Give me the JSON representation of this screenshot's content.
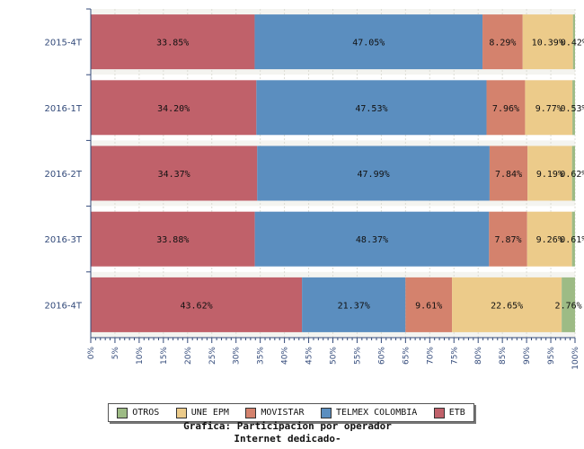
{
  "chart_data": {
    "type": "bar",
    "orientation": "horizontal",
    "stacked": true,
    "categories": [
      "2015-4T",
      "2016-1T",
      "2016-2T",
      "2016-3T",
      "2016-4T"
    ],
    "series": [
      {
        "name": "ETB",
        "color": "#c0616a",
        "values": [
          33.85,
          34.2,
          34.37,
          33.88,
          43.62
        ],
        "labels": [
          "33.85%",
          "34.20%",
          "34.37%",
          "33.88%",
          "43.62%"
        ]
      },
      {
        "name": "TELMEX COLOMBIA",
        "color": "#5b8ebf",
        "values": [
          47.05,
          47.53,
          47.99,
          48.37,
          21.37
        ],
        "labels": [
          "47.05%",
          "47.53%",
          "47.99%",
          "48.37%",
          "21.37%"
        ]
      },
      {
        "name": "MOVISTAR",
        "color": "#d4826d",
        "values": [
          8.29,
          7.96,
          7.84,
          7.87,
          9.61
        ],
        "labels": [
          "8.29%",
          "7.96%",
          "7.84%",
          "7.87%",
          "9.61%"
        ]
      },
      {
        "name": "UNE EPM",
        "color": "#eccb8a",
        "values": [
          10.39,
          9.77,
          9.19,
          9.26,
          22.65
        ],
        "labels": [
          "10.39%",
          "9.77%",
          "9.19%",
          "9.26%",
          "22.65%"
        ]
      },
      {
        "name": "OTROS",
        "color": "#9dbb85",
        "values": [
          0.42,
          0.53,
          0.62,
          0.61,
          2.76
        ],
        "labels": [
          "0.42%",
          "0.53%",
          "0.62%",
          "0.61%",
          "2.76%"
        ]
      }
    ],
    "xlim": [
      0,
      100
    ],
    "xticks": [
      "0%",
      "5%",
      "10%",
      "15%",
      "20%",
      "25%",
      "30%",
      "35%",
      "40%",
      "45%",
      "50%",
      "55%",
      "60%",
      "65%",
      "70%",
      "75%",
      "80%",
      "85%",
      "90%",
      "95%",
      "100%"
    ],
    "legend_order": [
      "OTROS",
      "UNE EPM",
      "MOVISTAR",
      "TELMEX COLOMBIA",
      "ETB"
    ],
    "legend_position": "bottom",
    "grid": true,
    "title_lines": [
      "Grafica: Participacion por operador",
      "Internet dedicado-"
    ]
  }
}
